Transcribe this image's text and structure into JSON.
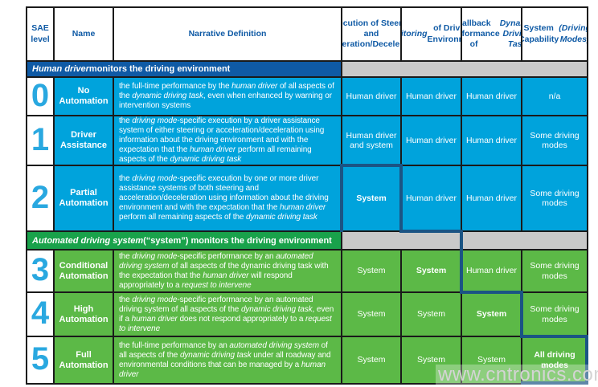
{
  "colors": {
    "cell_blue": "#00A3DC",
    "cell_green": "#5CB947",
    "section_blue": "#0F5AA5",
    "section_green": "#19A24B",
    "gray": "#C9C9C9",
    "level_number": "#29A8E0",
    "header_text": "#0F5AA5",
    "highlight": "#1B5484",
    "grid_line": "#1A1A1A",
    "watermark": "#D4D4D4"
  },
  "watermark": "www.cntronics.com",
  "table": {
    "columns": [
      {
        "label": [
          {
            "text": "SAE level"
          }
        ]
      },
      {
        "label": [
          {
            "text": "Name"
          }
        ]
      },
      {
        "label": [
          {
            "text": "Narrative Definition"
          }
        ]
      },
      {
        "label": [
          {
            "text": "Execution of Steering and Acceleration/Deceleration"
          }
        ]
      },
      {
        "label": [
          {
            "text": "Monitoring",
            "italic": true
          },
          {
            "text": " of Driving Environment"
          }
        ]
      },
      {
        "label": [
          {
            "text": "Fallback Performance of "
          },
          {
            "text": "Dynamic Driving Task",
            "italic": true
          }
        ]
      },
      {
        "label": [
          {
            "text": "System Capability "
          },
          {
            "text": "(Driving Modes)",
            "italic": true
          }
        ]
      }
    ],
    "sections": [
      {
        "label": [
          {
            "text": "Human driver",
            "italic": true
          },
          {
            "text": " monitors the driving environment"
          }
        ]
      },
      {
        "label": [
          {
            "text": "Automated driving system",
            "italic": true
          },
          {
            "text": " (“system”) monitors the driving environment"
          }
        ]
      }
    ],
    "rows": [
      {
        "level": "0",
        "name": "No Automation",
        "narrative": [
          {
            "text": "the full-time performance by the "
          },
          {
            "text": "human driver",
            "italic": true
          },
          {
            "text": " of all aspects of the "
          },
          {
            "text": "dynamic driving task",
            "italic": true
          },
          {
            "text": ", even when enhanced by warning or intervention systems"
          }
        ],
        "cells": [
          {
            "text": "Human driver"
          },
          {
            "text": "Human driver"
          },
          {
            "text": "Human driver"
          },
          {
            "text": "n/a"
          }
        ]
      },
      {
        "level": "1",
        "name": "Driver Assistance",
        "narrative": [
          {
            "text": "the "
          },
          {
            "text": "driving mode",
            "italic": true
          },
          {
            "text": "-specific execution by a driver assistance system of either steering or acceleration/deceleration using information about the driving environment and with the expectation that the "
          },
          {
            "text": "human driver",
            "italic": true
          },
          {
            "text": " perform all remaining aspects of the "
          },
          {
            "text": "dynamic driving task",
            "italic": true
          }
        ],
        "cells": [
          {
            "text": "Human driver and system"
          },
          {
            "text": "Human driver"
          },
          {
            "text": "Human driver"
          },
          {
            "text": "Some driving modes"
          }
        ]
      },
      {
        "level": "2",
        "name": "Partial Automation",
        "narrative": [
          {
            "text": "the "
          },
          {
            "text": "driving mode",
            "italic": true
          },
          {
            "text": "-specific execution by one or more driver assistance systems of both steering and acceleration/deceleration using information about the driving environment and with the expectation that the "
          },
          {
            "text": "human driver",
            "italic": true
          },
          {
            "text": " perform all remaining aspects of the "
          },
          {
            "text": "dynamic driving task",
            "italic": true
          }
        ],
        "cells": [
          {
            "text": "System",
            "emphasis": true
          },
          {
            "text": "Human driver"
          },
          {
            "text": "Human driver"
          },
          {
            "text": "Some driving modes"
          }
        ]
      },
      {
        "level": "3",
        "name": "Conditional Automation",
        "narrative": [
          {
            "text": "the "
          },
          {
            "text": "driving mode",
            "italic": true
          },
          {
            "text": "-specific performance by an "
          },
          {
            "text": "automated driving system",
            "italic": true
          },
          {
            "text": " of all aspects of the dynamic driving task with the expectation that the "
          },
          {
            "text": "human driver",
            "italic": true
          },
          {
            "text": " will respond appropriately to a "
          },
          {
            "text": "request to intervene",
            "italic": true
          }
        ],
        "cells": [
          {
            "text": "System"
          },
          {
            "text": "System",
            "emphasis": true
          },
          {
            "text": "Human driver"
          },
          {
            "text": "Some driving modes"
          }
        ]
      },
      {
        "level": "4",
        "name": "High Automation",
        "narrative": [
          {
            "text": "the "
          },
          {
            "text": "driving mode",
            "italic": true
          },
          {
            "text": "-specific performance by an automated driving system of all aspects of the "
          },
          {
            "text": "dynamic driving task",
            "italic": true
          },
          {
            "text": ", even if a "
          },
          {
            "text": "human driver",
            "italic": true
          },
          {
            "text": " does not respond appropriately to a "
          },
          {
            "text": "request to intervene",
            "italic": true
          }
        ],
        "cells": [
          {
            "text": "System"
          },
          {
            "text": "System"
          },
          {
            "text": "System",
            "emphasis": true
          },
          {
            "text": "Some driving modes"
          }
        ]
      },
      {
        "level": "5",
        "name": "Full Automation",
        "narrative": [
          {
            "text": "the full-time performance by an "
          },
          {
            "text": "automated driving system",
            "italic": true
          },
          {
            "text": " of all aspects of the "
          },
          {
            "text": "dynamic driving task",
            "italic": true
          },
          {
            "text": " under all roadway and environmental conditions that can be managed by a "
          },
          {
            "text": "human driver",
            "italic": true
          }
        ],
        "cells": [
          {
            "text": "System"
          },
          {
            "text": "System"
          },
          {
            "text": "System"
          },
          {
            "text": "All driving modes",
            "emphasis": true
          }
        ]
      }
    ]
  }
}
